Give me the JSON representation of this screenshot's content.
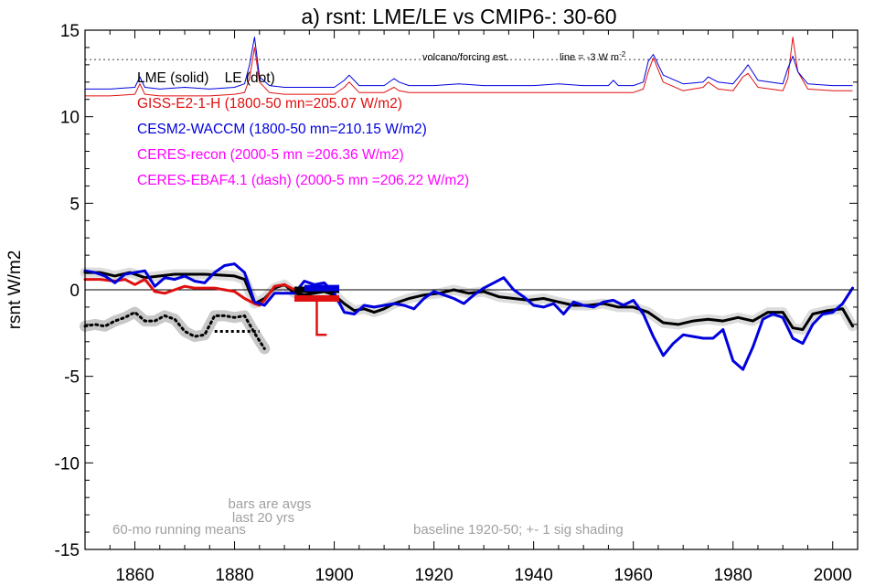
{
  "chart_data": {
    "type": "line",
    "title": "a) rsnt: LME/LE vs CMIP6-: 30-60",
    "xlabel": "",
    "ylabel": "rsnt W/m2",
    "xlim": [
      1850,
      2005
    ],
    "ylim": [
      -15,
      15
    ],
    "xticks": [
      1860,
      1880,
      1900,
      1920,
      1940,
      1960,
      1980,
      2000
    ],
    "yticks": [
      15,
      10,
      5,
      0,
      -5,
      -10,
      -15
    ],
    "grid": false,
    "legend_placement": "top-left",
    "legend": [
      {
        "text": "LME (solid)    LE (dot)",
        "color": "#000000"
      },
      {
        "text": "GISS-E2-1-H (1800-50 mn=205.07 W/m2)",
        "color": "#e01010"
      },
      {
        "text": "CESM2-WACCM (1800-50 mn=210.15 W/m2)",
        "color": "#0000dd"
      },
      {
        "text": "CERES-recon (2000-5 mn =206.36 W/m2)",
        "color": "#ff00ff"
      },
      {
        "text": "CERES-EBAF4.1 (dash) (2000-5 mn =206.22 W/m2)",
        "color": "#ff00ff"
      }
    ],
    "annotations": {
      "volcano": "volcano/forcing est.",
      "volcano_line": "line = -3 W m",
      "volcano_line_sup": "-2",
      "bars_note_1": "bars are avgs",
      "bars_note_2": "last 20 yrs",
      "running_note": "60-mo running means",
      "baseline_note": "baseline 1920-50; +- 1 sig shading"
    },
    "reference_lines": {
      "zero": 0,
      "volcano_threshold": 13.3
    },
    "series": [
      {
        "name": "LME (solid)",
        "color": "#000000",
        "style": "solid",
        "x": [
          1850,
          1853,
          1856,
          1859,
          1862,
          1865,
          1868,
          1871,
          1874,
          1877,
          1880,
          1882,
          1884,
          1886,
          1888,
          1890,
          1892,
          1894,
          1896,
          1898,
          1900,
          1902,
          1904,
          1906,
          1908,
          1910,
          1912,
          1915,
          1918,
          1921,
          1924,
          1927,
          1930,
          1933,
          1936,
          1939,
          1942,
          1945,
          1948,
          1951,
          1954,
          1957,
          1960,
          1963,
          1966,
          1969,
          1972,
          1975,
          1978,
          1981,
          1984,
          1987,
          1990,
          1992,
          1994,
          1996,
          1999,
          2002,
          2004
        ],
        "y": [
          1.0,
          1.0,
          0.8,
          1.0,
          0.7,
          0.8,
          0.9,
          0.9,
          0.9,
          0.85,
          0.8,
          0.6,
          -0.8,
          -0.5,
          0.1,
          0.3,
          -0.2,
          -0.3,
          -0.2,
          -0.1,
          -0.3,
          -0.8,
          -1.2,
          -1.1,
          -1.3,
          -1.1,
          -0.8,
          -0.5,
          -0.3,
          -0.2,
          0.0,
          -0.2,
          -0.1,
          -0.4,
          -0.5,
          -0.6,
          -0.5,
          -0.7,
          -0.9,
          -0.9,
          -0.8,
          -1.0,
          -1.0,
          -1.3,
          -1.9,
          -2.0,
          -1.8,
          -1.7,
          -1.8,
          -1.6,
          -1.8,
          -1.3,
          -1.3,
          -2.2,
          -2.3,
          -1.4,
          -1.2,
          -1.1,
          -2.1
        ]
      },
      {
        "name": "GISS-E2-1-H",
        "color": "#e01010",
        "style": "solid",
        "x": [
          1850,
          1853,
          1856,
          1858,
          1860,
          1862,
          1864,
          1866,
          1868,
          1870,
          1872,
          1874,
          1876,
          1878,
          1880,
          1882,
          1884,
          1885,
          1886,
          1888,
          1890,
          1892,
          1894
        ],
        "y": [
          0.6,
          0.6,
          0.5,
          0.6,
          0.3,
          0.6,
          -0.1,
          -0.2,
          0.0,
          0.2,
          0.1,
          0.1,
          0.1,
          0.0,
          -0.1,
          -0.5,
          -0.8,
          -0.9,
          -0.6,
          0.2,
          0.3,
          0.0,
          -0.1
        ]
      },
      {
        "name": "CESM2-WACCM",
        "color": "#0000dd",
        "style": "solid",
        "x": [
          1850,
          1852,
          1854,
          1856,
          1858,
          1860,
          1862,
          1864,
          1866,
          1868,
          1870,
          1872,
          1874,
          1876,
          1878,
          1880,
          1882,
          1884,
          1886,
          1888,
          1890,
          1892,
          1894,
          1896,
          1898,
          1900,
          1902,
          1904,
          1906,
          1908,
          1910,
          1912,
          1914,
          1916,
          1918,
          1920,
          1922,
          1924,
          1926,
          1928,
          1930,
          1932,
          1934,
          1936,
          1938,
          1940,
          1942,
          1944,
          1946,
          1948,
          1950,
          1952,
          1954,
          1956,
          1958,
          1960,
          1962,
          1964,
          1966,
          1968,
          1970,
          1972,
          1974,
          1976,
          1978,
          1980,
          1982,
          1984,
          1986,
          1988,
          1990,
          1992,
          1994,
          1996,
          1998,
          2000,
          2002,
          2004
        ],
        "y": [
          1.1,
          1.0,
          0.8,
          0.4,
          0.9,
          1.0,
          1.1,
          0.2,
          0.7,
          0.6,
          0.8,
          0.5,
          0.4,
          1.0,
          1.4,
          1.5,
          1.0,
          -0.7,
          -0.9,
          -0.2,
          -0.2,
          -0.2,
          0.5,
          0.3,
          0.4,
          -0.2,
          -1.3,
          -1.4,
          -0.9,
          -1.0,
          -0.9,
          -0.8,
          -0.9,
          -1.1,
          -0.5,
          -0.1,
          -0.3,
          -0.5,
          -0.8,
          -0.3,
          0.1,
          0.4,
          0.7,
          0.0,
          -0.4,
          -0.9,
          -1.0,
          -0.8,
          -1.4,
          -0.7,
          -0.9,
          -1.0,
          -0.7,
          -0.6,
          -0.9,
          -0.6,
          -1.4,
          -2.7,
          -3.8,
          -3.1,
          -2.6,
          -2.7,
          -2.8,
          -2.8,
          -2.3,
          -4.1,
          -4.6,
          -3.3,
          -1.7,
          -1.4,
          -1.6,
          -2.8,
          -3.1,
          -2.0,
          -1.4,
          -1.3,
          -0.8,
          0.1
        ]
      },
      {
        "name": "LE (dot)",
        "color": "#000000",
        "style": "dot",
        "x": [
          1850,
          1852,
          1854,
          1856,
          1858,
          1860,
          1862,
          1864,
          1866,
          1868,
          1870,
          1872,
          1874,
          1876,
          1878,
          1880,
          1882,
          1884,
          1886
        ],
        "y": [
          -2.1,
          -2.0,
          -2.1,
          -1.8,
          -1.6,
          -1.3,
          -1.8,
          -1.8,
          -1.5,
          -1.7,
          -2.4,
          -2.7,
          -2.6,
          -1.5,
          -1.5,
          -1.6,
          -1.5,
          -2.5,
          -3.4
        ]
      }
    ],
    "bars": [
      {
        "name": "LME avg last 20 yrs",
        "color": "#000000",
        "x0": 1892,
        "x1": 1901,
        "y": 0.0
      },
      {
        "name": "GISS-E2-1-H avg last 20 yrs",
        "color": "#e01010",
        "x0": 1892,
        "x1": 1901,
        "y": -0.5
      },
      {
        "name": "CESM2-WACCM avg last 20 yrs",
        "color": "#0000dd",
        "x0": 1894,
        "x1": 1901,
        "y": 0.1
      },
      {
        "name": "LE avg last 20 yrs",
        "color": "#000000",
        "style": "dot",
        "x0": 1876,
        "x1": 1885,
        "y": -2.4
      }
    ],
    "extra_segments": [
      {
        "name": "GISS drop",
        "color": "#e01010",
        "x": [
          1896.5,
          1896.5,
          1898.5
        ],
        "y": [
          -0.5,
          -2.6,
          -2.6
        ]
      }
    ],
    "volcano_series": [
      {
        "name": "GISS-E2-1-H volcano/forcing",
        "color": "#e01010",
        "x": [
          1850,
          1855,
          1860,
          1861,
          1862,
          1865,
          1870,
          1875,
          1880,
          1882,
          1883,
          1884,
          1885,
          1887,
          1890,
          1895,
          1900,
          1902,
          1903,
          1905,
          1910,
          1912,
          1913,
          1915,
          1920,
          1925,
          1930,
          1935,
          1940,
          1945,
          1950,
          1955,
          1960,
          1962,
          1963,
          1964,
          1966,
          1970,
          1974,
          1975,
          1977,
          1980,
          1982,
          1983,
          1985,
          1990,
          1991,
          1992,
          1993,
          1995,
          2000,
          2004
        ],
        "y": [
          11.2,
          11.2,
          11.3,
          11.9,
          11.3,
          11.2,
          11.2,
          11.2,
          11.3,
          11.4,
          12.2,
          14.0,
          12.0,
          11.4,
          11.3,
          11.3,
          11.3,
          11.7,
          12.0,
          11.4,
          11.4,
          11.7,
          11.5,
          11.4,
          11.4,
          11.4,
          11.4,
          11.4,
          11.4,
          11.4,
          11.4,
          11.4,
          11.4,
          11.6,
          12.6,
          13.4,
          12.0,
          11.5,
          11.7,
          12.0,
          11.6,
          11.5,
          12.3,
          12.5,
          11.7,
          11.5,
          12.2,
          14.6,
          12.6,
          11.6,
          11.5,
          11.5
        ]
      },
      {
        "name": "CESM2-WACCM volcano/forcing",
        "color": "#0000dd",
        "x": [
          1850,
          1855,
          1860,
          1861,
          1862,
          1865,
          1870,
          1875,
          1880,
          1882,
          1883,
          1884,
          1885,
          1887,
          1890,
          1895,
          1900,
          1902,
          1903,
          1905,
          1910,
          1912,
          1913,
          1915,
          1920,
          1925,
          1930,
          1935,
          1940,
          1945,
          1950,
          1955,
          1956,
          1957,
          1960,
          1962,
          1963,
          1964,
          1966,
          1970,
          1974,
          1975,
          1977,
          1980,
          1982,
          1983,
          1985,
          1990,
          1991,
          1992,
          1993,
          1995,
          2000,
          2004
        ],
        "y": [
          11.6,
          11.6,
          11.7,
          12.3,
          11.7,
          11.6,
          11.7,
          11.6,
          11.7,
          11.9,
          13.0,
          14.6,
          12.3,
          11.8,
          11.7,
          11.7,
          11.7,
          12.1,
          12.4,
          11.8,
          11.8,
          12.2,
          12.0,
          11.8,
          11.8,
          11.9,
          11.8,
          11.8,
          11.8,
          11.9,
          11.8,
          11.8,
          12.1,
          11.8,
          11.8,
          12.0,
          13.2,
          13.6,
          12.4,
          11.9,
          12.0,
          12.3,
          12.0,
          11.9,
          12.6,
          13.0,
          12.1,
          11.9,
          12.8,
          13.5,
          12.6,
          11.9,
          11.8,
          11.8
        ]
      }
    ]
  }
}
